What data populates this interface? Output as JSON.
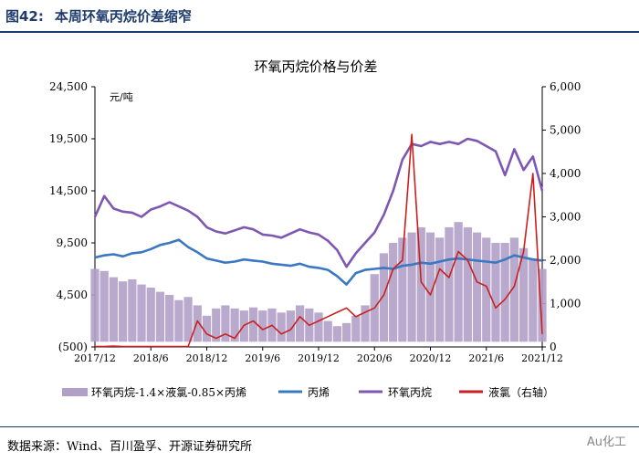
{
  "figure": {
    "number": "图42:",
    "title": "本周环氧丙烷价差缩窄",
    "source": "数据来源：Wind、百川盈孚、开源证券研究所",
    "watermark": "Au化工"
  },
  "colors": {
    "title": "#1f3c6e",
    "spread": "#b0a0c8",
    "propylene": "#3a78c2",
    "po": "#7e57b3",
    "chlorine": "#cc1f1f"
  },
  "chart_data": {
    "type": "line",
    "title": "环氧丙烷价格与价差",
    "left_unit": "元/吨",
    "left_axis": {
      "min": -500,
      "max": 24500,
      "ticks": [
        -500,
        4500,
        9500,
        14500,
        19500,
        24500
      ],
      "tick_labels": [
        "(500)",
        "4,500",
        "9,500",
        "14,500",
        "19,500",
        "24,500"
      ]
    },
    "right_axis": {
      "min": 0,
      "max": 6000,
      "ticks": [
        0,
        1000,
        2000,
        3000,
        4000,
        5000,
        6000
      ],
      "tick_labels": [
        "0",
        "1,000",
        "2,000",
        "3,000",
        "4,000",
        "5,000",
        "6,000"
      ]
    },
    "x_axis": {
      "start": "2017-12",
      "end": "2021-12",
      "ticks": [
        "2017/12",
        "2018/6",
        "2018/12",
        "2019/6",
        "2019/12",
        "2020/6",
        "2020/12",
        "2021/6",
        "2021/12"
      ]
    },
    "x": [
      "2017-12",
      "2018-01",
      "2018-02",
      "2018-03",
      "2018-04",
      "2018-05",
      "2018-06",
      "2018-07",
      "2018-08",
      "2018-09",
      "2018-10",
      "2018-11",
      "2018-12",
      "2019-01",
      "2019-02",
      "2019-03",
      "2019-04",
      "2019-05",
      "2019-06",
      "2019-07",
      "2019-08",
      "2019-09",
      "2019-10",
      "2019-11",
      "2019-12",
      "2020-01",
      "2020-02",
      "2020-03",
      "2020-04",
      "2020-05",
      "2020-06",
      "2020-07",
      "2020-08",
      "2020-09",
      "2020-10",
      "2020-11",
      "2020-12",
      "2021-01",
      "2021-02",
      "2021-03",
      "2021-04",
      "2021-05",
      "2021-06",
      "2021-07",
      "2021-08",
      "2021-09",
      "2021-10",
      "2021-11",
      "2021-12"
    ],
    "series": [
      {
        "name": "环氧丙烷-1.4×液氯-0.85×丙烯",
        "axis": "left",
        "type": "area",
        "values": [
          7000,
          6800,
          6200,
          5800,
          6000,
          5500,
          5200,
          4800,
          4500,
          4000,
          4300,
          3500,
          2500,
          3200,
          3500,
          3200,
          3000,
          3300,
          3000,
          3200,
          2800,
          3000,
          3500,
          3200,
          2800,
          2000,
          1500,
          1800,
          2500,
          3500,
          6500,
          8500,
          9500,
          10000,
          10500,
          11000,
          10500,
          10000,
          11000,
          11500,
          11000,
          10500,
          10000,
          9500,
          9500,
          10000,
          9000,
          8000,
          7000
        ]
      },
      {
        "name": "丙烯",
        "axis": "left",
        "type": "line",
        "values": [
          8100,
          8300,
          8400,
          8200,
          8500,
          8600,
          8900,
          9300,
          9500,
          9800,
          9100,
          8600,
          8000,
          7800,
          7600,
          7700,
          7900,
          7800,
          7700,
          7500,
          7400,
          7300,
          7500,
          7200,
          7100,
          6900,
          6300,
          5500,
          6600,
          6900,
          7000,
          7100,
          7000,
          7300,
          7400,
          7600,
          7500,
          7700,
          7900,
          8000,
          7900,
          7800,
          7700,
          7600,
          7900,
          8300,
          8100,
          7900,
          7800
        ]
      },
      {
        "name": "环氧丙烷",
        "axis": "left",
        "type": "line",
        "values": [
          12000,
          14000,
          12800,
          12500,
          12400,
          12000,
          12700,
          13000,
          13400,
          13000,
          12600,
          12000,
          11000,
          10600,
          10400,
          10700,
          11000,
          10800,
          10300,
          10200,
          10000,
          10400,
          10800,
          10500,
          10300,
          9700,
          8800,
          7200,
          8500,
          9500,
          10500,
          12200,
          14500,
          17500,
          19000,
          18800,
          19200,
          19000,
          19200,
          19000,
          19500,
          19300,
          18800,
          18300,
          16000,
          18500,
          16500,
          17800,
          14500
        ]
      },
      {
        "name": "液氯（右轴）",
        "axis": "right",
        "type": "line",
        "values": [
          10,
          10,
          20,
          10,
          10,
          10,
          10,
          10,
          10,
          10,
          10,
          600,
          300,
          200,
          300,
          200,
          500,
          600,
          400,
          500,
          300,
          400,
          700,
          500,
          600,
          700,
          800,
          900,
          700,
          800,
          900,
          1200,
          1800,
          2000,
          4900,
          1500,
          1200,
          1800,
          1600,
          2200,
          2000,
          1500,
          1400,
          900,
          1100,
          1400,
          2200,
          4000,
          300
        ]
      }
    ]
  }
}
